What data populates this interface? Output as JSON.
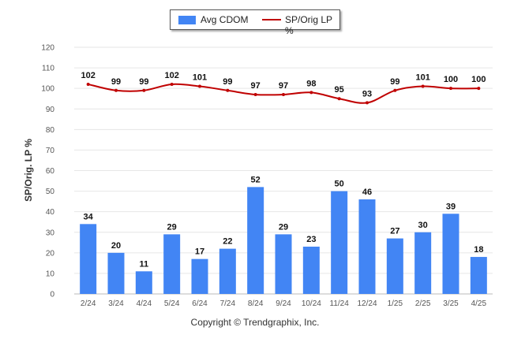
{
  "chart_data": {
    "type": "bar",
    "categories": [
      "2/24",
      "3/24",
      "4/24",
      "5/24",
      "6/24",
      "7/24",
      "8/24",
      "9/24",
      "10/24",
      "11/24",
      "12/24",
      "1/25",
      "2/25",
      "3/25",
      "4/25"
    ],
    "series": [
      {
        "name": "Avg CDOM",
        "kind": "bar",
        "color": "#4285f4",
        "values": [
          34,
          20,
          11,
          29,
          17,
          22,
          52,
          29,
          23,
          50,
          46,
          27,
          30,
          39,
          18
        ]
      },
      {
        "name": "SP/Orig LP %",
        "kind": "line",
        "color": "#c00000",
        "values": [
          102,
          99,
          99,
          102,
          101,
          99,
          97,
          97,
          98,
          95,
          93,
          99,
          101,
          100,
          100
        ]
      }
    ],
    "ylabel": "SP/Orig. LP %",
    "ylim": [
      0,
      120
    ],
    "yticks": [
      0,
      10,
      20,
      30,
      40,
      50,
      60,
      70,
      80,
      90,
      100,
      110,
      120
    ],
    "grid": true,
    "legend_position": "top-center"
  },
  "footer": {
    "copyright": "Copyright © Trendgraphix, Inc."
  }
}
